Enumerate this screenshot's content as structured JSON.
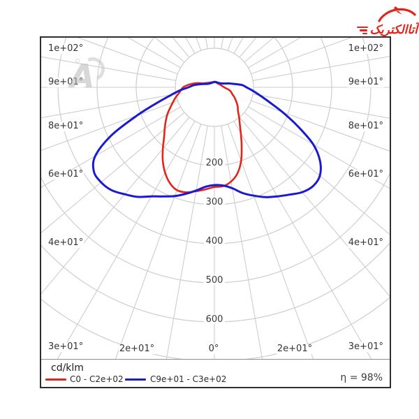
{
  "logo": {
    "brand_text": "آتاالکتریک",
    "color": "#e2251b"
  },
  "watermark": {
    "letter": "A"
  },
  "axis": {
    "left_labels": [
      "1e+02°",
      "9e+01°",
      "8e+01°",
      "6e+01°",
      "4e+01°",
      "3e+01°"
    ],
    "right_labels": [
      "1e+02°",
      "9e+01°",
      "8e+01°",
      "6e+01°",
      "4e+01°",
      "3e+01°"
    ],
    "bottom_labels": [
      "2e+01°",
      "0°",
      "2e+01°"
    ],
    "radial_labels": [
      "200",
      "300",
      "400",
      "500",
      "600"
    ]
  },
  "footer": {
    "unit_label": "cd/klm",
    "efficiency_label": "η = 98%"
  },
  "chart_data": {
    "type": "polar",
    "subtype": "luminous-intensity-distribution",
    "title": "",
    "unit": "cd/klm",
    "angle_unit": "degrees from nadir; negative = left half of diagram",
    "radial_axis_ticks": [
      100,
      200,
      300,
      400,
      500,
      600,
      700
    ],
    "radial_tick_labels_shown": [
      200,
      300,
      400,
      500,
      600
    ],
    "angle_grid_step_deg": 10,
    "angle_labels_shown_deg": [
      100,
      90,
      80,
      60,
      40,
      30,
      20,
      0
    ],
    "efficiency_percent": 98,
    "grid_color": "#cdcdcd",
    "series": [
      {
        "name": "C0 - C2e+02",
        "plane": "C0-C180",
        "color": "#e2251b",
        "stroke_width": 2.6,
        "points": [
          [
            -180,
            14
          ],
          [
            -160,
            14
          ],
          [
            -140,
            16
          ],
          [
            -120,
            22
          ],
          [
            -110,
            30
          ],
          [
            -105,
            42
          ],
          [
            -100,
            55
          ],
          [
            -95,
            68
          ],
          [
            -90,
            80
          ],
          [
            -85,
            86
          ],
          [
            -80,
            93
          ],
          [
            -75,
            103
          ],
          [
            -70,
            113
          ],
          [
            -65,
            125
          ],
          [
            -60,
            139
          ],
          [
            -55,
            152
          ],
          [
            -50,
            166
          ],
          [
            -45,
            182
          ],
          [
            -40,
            205
          ],
          [
            -35,
            230
          ],
          [
            -30,
            252
          ],
          [
            -25,
            270
          ],
          [
            -20,
            280
          ],
          [
            -15,
            278
          ],
          [
            -10,
            270
          ],
          [
            -5,
            262
          ],
          [
            0,
            255
          ],
          [
            5,
            254
          ],
          [
            10,
            245
          ],
          [
            15,
            228
          ],
          [
            20,
            200
          ],
          [
            25,
            165
          ],
          [
            30,
            135
          ],
          [
            35,
            113
          ],
          [
            40,
            98
          ],
          [
            45,
            85
          ],
          [
            50,
            78
          ],
          [
            55,
            70
          ],
          [
            60,
            62
          ],
          [
            65,
            55
          ],
          [
            70,
            48
          ],
          [
            75,
            44
          ],
          [
            80,
            38
          ],
          [
            85,
            30
          ],
          [
            90,
            25
          ],
          [
            95,
            22
          ],
          [
            100,
            20
          ],
          [
            110,
            17
          ],
          [
            120,
            15
          ],
          [
            140,
            13
          ],
          [
            160,
            13
          ],
          [
            180,
            14
          ]
        ]
      },
      {
        "name": "C9e+01 - C3e+02",
        "plane": "C90-C270",
        "color": "#1a1ad2",
        "stroke_width": 3,
        "points": [
          [
            -180,
            14
          ],
          [
            -160,
            13
          ],
          [
            -140,
            14
          ],
          [
            -120,
            18
          ],
          [
            -110,
            25
          ],
          [
            -105,
            32
          ],
          [
            -100,
            42
          ],
          [
            -95,
            55
          ],
          [
            -90,
            66
          ],
          [
            -85,
            88
          ],
          [
            -80,
            112
          ],
          [
            -75,
            150
          ],
          [
            -70,
            210
          ],
          [
            -65,
            290
          ],
          [
            -60,
            352
          ],
          [
            -55,
            376
          ],
          [
            -50,
            378
          ],
          [
            -45,
            372
          ],
          [
            -40,
            357
          ],
          [
            -35,
            342
          ],
          [
            -30,
            322
          ],
          [
            -25,
            308
          ],
          [
            -20,
            296
          ],
          [
            -15,
            282
          ],
          [
            -10,
            268
          ],
          [
            -5,
            255
          ],
          [
            0,
            250
          ],
          [
            5,
            252
          ],
          [
            10,
            262
          ],
          [
            15,
            280
          ],
          [
            20,
            295
          ],
          [
            25,
            310
          ],
          [
            30,
            322
          ],
          [
            35,
            335
          ],
          [
            40,
            350
          ],
          [
            45,
            357
          ],
          [
            50,
            352
          ],
          [
            55,
            330
          ],
          [
            60,
            292
          ],
          [
            65,
            235
          ],
          [
            70,
            185
          ],
          [
            75,
            145
          ],
          [
            80,
            118
          ],
          [
            85,
            98
          ],
          [
            90,
            82
          ],
          [
            95,
            70
          ],
          [
            100,
            50
          ],
          [
            105,
            38
          ],
          [
            110,
            28
          ],
          [
            120,
            20
          ],
          [
            140,
            15
          ],
          [
            160,
            14
          ],
          [
            180,
            14
          ]
        ]
      }
    ]
  }
}
